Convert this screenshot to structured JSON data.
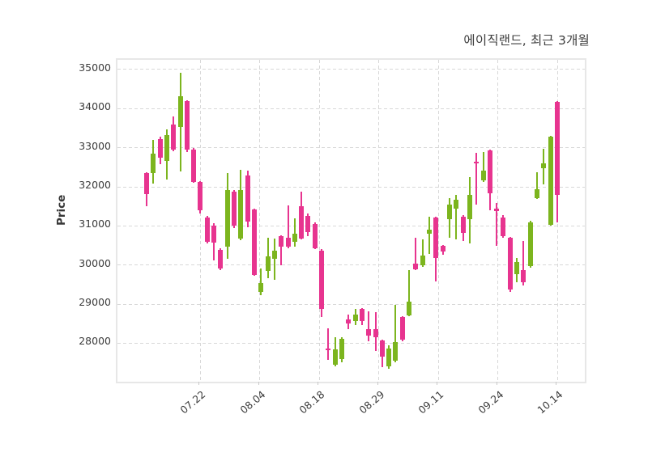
{
  "title": "에이직랜드, 최근 3개월",
  "y_axis": {
    "label": "Price"
  },
  "x_axis": {
    "ticks": [
      "07.22",
      "08.04",
      "08.18",
      "08.29",
      "09.11",
      "09.24",
      "10.14"
    ]
  },
  "colors": {
    "up": "#7cb51e",
    "down": "#e7348f",
    "grid": "#d8d8d8",
    "plot_border": "#e7e7e7",
    "text": "#3c3c3c",
    "title_text": "#3d3d3d"
  },
  "chart_data": {
    "type": "candlestick",
    "title": "에이직랜드, 최근 3개월",
    "ylabel": "Price",
    "ylim": [
      27000,
      35250
    ],
    "grid": "dashed",
    "increasing_color": "#7cb51e",
    "decreasing_color": "#e7348f",
    "y_ticks": [
      35000,
      34000,
      33000,
      32000,
      31000,
      30000,
      29000,
      28000
    ],
    "x_tick_labels": [
      "07.22",
      "08.04",
      "08.18",
      "08.29",
      "09.11",
      "09.24",
      "10.14"
    ],
    "candles_format": [
      "open",
      "high",
      "low",
      "close"
    ],
    "candles": [
      [
        32360,
        32380,
        31500,
        31810
      ],
      [
        32360,
        33190,
        32080,
        32840
      ],
      [
        33220,
        33290,
        32570,
        32740
      ],
      [
        32670,
        33460,
        32190,
        33320
      ],
      [
        33600,
        33810,
        32910,
        32950
      ],
      [
        33530,
        34910,
        32390,
        34320
      ],
      [
        34190,
        34220,
        32880,
        32950
      ],
      [
        32950,
        32990,
        32100,
        32120
      ],
      [
        32120,
        32150,
        31320,
        31390
      ],
      [
        31220,
        31260,
        30550,
        30600
      ],
      [
        31010,
        31060,
        30120,
        30570
      ],
      [
        30390,
        30420,
        29870,
        29910
      ],
      [
        30460,
        32360,
        30150,
        31910
      ],
      [
        31880,
        31920,
        30950,
        31010
      ],
      [
        30670,
        32430,
        30640,
        31910
      ],
      [
        32290,
        32410,
        30970,
        31120
      ],
      [
        31430,
        31450,
        29730,
        29740
      ],
      [
        29320,
        29910,
        29220,
        29530
      ],
      [
        29840,
        30700,
        29670,
        30220
      ],
      [
        30150,
        30670,
        29630,
        30360
      ],
      [
        30740,
        30760,
        29990,
        30460
      ],
      [
        30700,
        31530,
        30420,
        30460
      ],
      [
        30600,
        31190,
        30460,
        30800
      ],
      [
        31500,
        31880,
        30650,
        30670
      ],
      [
        31260,
        31320,
        30740,
        30840
      ],
      [
        31050,
        31090,
        30410,
        30430
      ],
      [
        30360,
        30400,
        28670,
        28880
      ],
      [
        27870,
        28390,
        27570,
        27820
      ],
      [
        27450,
        28150,
        27400,
        27840
      ],
      [
        27590,
        28160,
        27520,
        28120
      ],
      [
        28600,
        28740,
        28360,
        28500
      ],
      [
        28570,
        28880,
        28470,
        28740
      ],
      [
        28880,
        28900,
        28460,
        28570
      ],
      [
        28360,
        28810,
        28050,
        28190
      ],
      [
        28360,
        28790,
        27810,
        28150
      ],
      [
        28080,
        28100,
        27390,
        27660
      ],
      [
        27410,
        27950,
        27340,
        27860
      ],
      [
        27550,
        28970,
        27520,
        28030
      ],
      [
        28660,
        28690,
        28050,
        28100
      ],
      [
        28720,
        29860,
        28700,
        29070
      ],
      [
        30030,
        30690,
        29860,
        29900
      ],
      [
        30000,
        30660,
        29960,
        30240
      ],
      [
        30800,
        31240,
        30280,
        30900
      ],
      [
        31210,
        31240,
        29590,
        30170
      ],
      [
        30480,
        30520,
        30270,
        30350
      ],
      [
        31170,
        31720,
        30690,
        31550
      ],
      [
        31450,
        31790,
        30660,
        31660
      ],
      [
        31240,
        31280,
        30620,
        30830
      ],
      [
        31170,
        32240,
        30550,
        31790
      ],
      [
        32650,
        32860,
        31550,
        32590
      ],
      [
        32170,
        32900,
        32120,
        32410
      ],
      [
        32930,
        32950,
        31410,
        31830
      ],
      [
        31450,
        31590,
        30480,
        31370
      ],
      [
        31220,
        31280,
        30690,
        30740
      ],
      [
        30690,
        30720,
        29310,
        29380
      ],
      [
        29760,
        30170,
        29550,
        30080
      ],
      [
        29860,
        30620,
        29480,
        29550
      ],
      [
        29970,
        31130,
        29930,
        31100
      ],
      [
        31720,
        32380,
        31690,
        31930
      ],
      [
        32480,
        32970,
        32070,
        32600
      ],
      [
        31030,
        33300,
        31010,
        33280
      ],
      [
        34170,
        34200,
        31100,
        31790
      ]
    ]
  }
}
